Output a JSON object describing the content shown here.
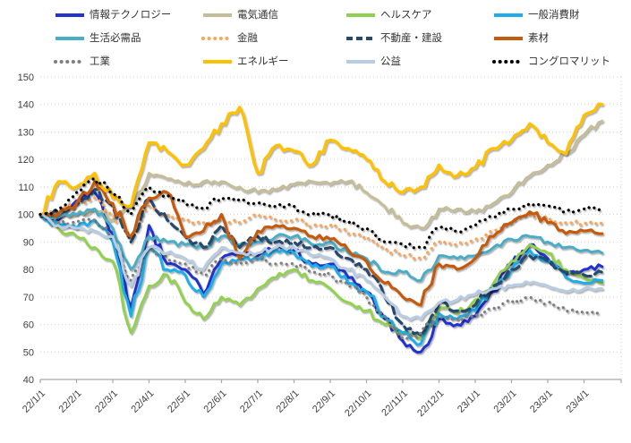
{
  "chart_data": {
    "type": "line",
    "title": "",
    "ylabel": "",
    "xlabel": "",
    "ylim": [
      40,
      150
    ],
    "y_ticks": [
      40,
      50,
      60,
      70,
      80,
      90,
      100,
      110,
      120,
      130,
      140,
      150
    ],
    "grid": "horizontal-dotted",
    "legend_position": "top",
    "x_tick_labels": [
      "22/1/1",
      "22/2/1",
      "22/3/1",
      "22/4/1",
      "22/5/1",
      "22/6/1",
      "22/7/1",
      "22/8/1",
      "22/9/1",
      "22/10/1",
      "22/11/1",
      "22/12/1",
      "23/1/1",
      "23/2/1",
      "23/3/1",
      "23/4/1"
    ],
    "x_sampling": "two points per month starting 22/1/1 (semi-monthly estimates), series extend ~half month past 23/4/1",
    "series": [
      {
        "key": "it",
        "name": "情報テクノロジー",
        "color": "#2433CC",
        "style": "solid",
        "width": 3,
        "values": [
          100,
          98,
          105,
          108,
          93,
          66,
          96,
          82,
          80,
          71,
          84,
          86,
          85,
          88,
          87,
          82,
          82,
          77,
          72,
          62,
          54,
          50,
          62,
          60,
          63,
          72,
          82,
          89,
          84,
          78,
          80,
          81
        ]
      },
      {
        "key": "telecom",
        "name": "電気通信",
        "color": "#C4BD97",
        "style": "solid",
        "width": 3,
        "values": [
          100,
          99,
          100,
          102,
          98,
          103,
          115,
          113,
          111,
          112,
          112,
          110,
          108,
          109,
          111,
          112,
          111,
          112,
          108,
          103,
          97,
          95,
          102,
          102,
          101,
          104,
          108,
          114,
          118,
          122,
          129,
          134
        ]
      },
      {
        "key": "healthcare",
        "name": "ヘルスケア",
        "color": "#92D050",
        "style": "solid",
        "width": 3,
        "values": [
          100,
          95,
          92,
          88,
          83,
          57,
          74,
          78,
          68,
          62,
          70,
          67,
          73,
          77,
          80,
          76,
          73,
          68,
          65,
          60,
          57,
          55,
          66,
          64,
          69,
          75,
          83,
          89,
          86,
          80,
          77,
          75
        ]
      },
      {
        "key": "consumer-discretionary",
        "name": "一般消費財",
        "color": "#1FAEE9",
        "style": "solid",
        "width": 3,
        "values": [
          100,
          96,
          95,
          98,
          90,
          63,
          88,
          80,
          78,
          70,
          82,
          84,
          84,
          87,
          86,
          81,
          81,
          75,
          72,
          63,
          57,
          53,
          64,
          62,
          65,
          73,
          80,
          87,
          83,
          77,
          75,
          76
        ]
      },
      {
        "key": "staples",
        "name": "生活必需品",
        "color": "#4BACC6",
        "style": "solid",
        "width": 3,
        "values": [
          100,
          99,
          100,
          102,
          95,
          80,
          92,
          90,
          89,
          88,
          92,
          89,
          90,
          92,
          92,
          89,
          90,
          86,
          84,
          79,
          79,
          76,
          85,
          84,
          85,
          88,
          91,
          92,
          90,
          88,
          87,
          86
        ]
      },
      {
        "key": "financials",
        "name": "金融",
        "color": "#F9A65A",
        "style": "dotted",
        "width": 3,
        "values": [
          100,
          101,
          104,
          106,
          100,
          92,
          103,
          100,
          98,
          97,
          98,
          97,
          100,
          98,
          98,
          96,
          96,
          93,
          92,
          88,
          85,
          84,
          90,
          89,
          91,
          94,
          97,
          100,
          99,
          97,
          97,
          97
        ]
      },
      {
        "key": "real-estate",
        "name": "不動産・建設",
        "color": "#27496D",
        "style": "dashed",
        "width": 3.2,
        "values": [
          100,
          101,
          104,
          109,
          103,
          90,
          106,
          98,
          92,
          88,
          96,
          88,
          92,
          90,
          90,
          88,
          88,
          84,
          80,
          70,
          60,
          56,
          68,
          65,
          67,
          74,
          80,
          85,
          83,
          79,
          78,
          79
        ]
      },
      {
        "key": "materials",
        "name": "素材",
        "color": "#C55A11",
        "style": "solid",
        "width": 3.2,
        "values": [
          100,
          100,
          104,
          112,
          104,
          92,
          106,
          108,
          92,
          94,
          100,
          84,
          94,
          96,
          95,
          92,
          91,
          87,
          83,
          75,
          70,
          67,
          82,
          80,
          84,
          92,
          97,
          101,
          97,
          93,
          94,
          93
        ]
      },
      {
        "key": "industrials",
        "name": "工業",
        "color": "#7F7F7F",
        "style": "dotted",
        "width": 2.8,
        "values": [
          100,
          97,
          97,
          98,
          92,
          76,
          88,
          84,
          82,
          78,
          84,
          82,
          84,
          82,
          82,
          79,
          78,
          74,
          70,
          63,
          55,
          57,
          63,
          62,
          63,
          66,
          68,
          70,
          68,
          65,
          64,
          64
        ]
      },
      {
        "key": "energy",
        "name": "エネルギー",
        "color": "#FFC000",
        "style": "solid",
        "width": 3.4,
        "values": [
          100,
          112,
          110,
          115,
          106,
          103,
          126,
          123,
          118,
          124,
          133,
          139,
          115,
          125,
          123,
          118,
          127,
          124,
          120,
          112,
          108,
          110,
          118,
          114,
          117,
          124,
          127,
          133,
          126,
          122,
          136,
          140
        ]
      },
      {
        "key": "utilities",
        "name": "公益",
        "color": "#B8CCE4",
        "style": "solid",
        "width": 3,
        "values": [
          100,
          96,
          95,
          94,
          92,
          74,
          88,
          86,
          84,
          80,
          88,
          86,
          86,
          88,
          88,
          85,
          84,
          80,
          76,
          70,
          63,
          62,
          68,
          69,
          71,
          73,
          74,
          75,
          74,
          72,
          73,
          73
        ]
      },
      {
        "key": "conglomerate",
        "name": "コングロマリット",
        "color": "#000000",
        "style": "dotted",
        "width": 2.8,
        "values": [
          100,
          102,
          108,
          113,
          108,
          100,
          110,
          107,
          104,
          102,
          106,
          105,
          104,
          103,
          103,
          100,
          100,
          97,
          95,
          90,
          89,
          88,
          95,
          94,
          96,
          99,
          102,
          104,
          103,
          101,
          102,
          102
        ]
      }
    ]
  },
  "colors": {
    "gridline": "#D3D3D3",
    "axis": "#A6A6A6",
    "tick_text": "#404040",
    "legend_text": "#333333"
  }
}
